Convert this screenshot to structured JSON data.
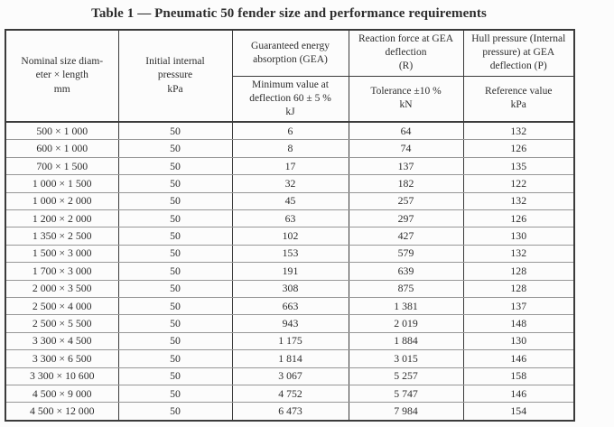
{
  "title": "Table 1 — Pneumatic 50 fender size and performance requirements",
  "table": {
    "columns": [
      {
        "top": "Nominal size diam-\neter × length\nmm",
        "sub": null
      },
      {
        "top": "Initial internal\npressure\nkPa",
        "sub": null
      },
      {
        "top": "Guaranteed energy\nabsorption (GEA)",
        "sub": "Minimum value at\ndeflection 60 ± 5 %\nkJ"
      },
      {
        "top": "Reaction force at GEA\ndeflection\n(R)",
        "sub": "Tolerance ±10 %\nkN"
      },
      {
        "top": "Hull pressure (Internal\npressure) at GEA\ndeflection (P)",
        "sub": "Reference value\nkPa"
      }
    ],
    "rows": [
      [
        "500 × 1 000",
        "50",
        "6",
        "64",
        "132"
      ],
      [
        "600 × 1 000",
        "50",
        "8",
        "74",
        "126"
      ],
      [
        "700 × 1 500",
        "50",
        "17",
        "137",
        "135"
      ],
      [
        "1 000 × 1 500",
        "50",
        "32",
        "182",
        "122"
      ],
      [
        "1 000 × 2 000",
        "50",
        "45",
        "257",
        "132"
      ],
      [
        "1 200 × 2 000",
        "50",
        "63",
        "297",
        "126"
      ],
      [
        "1 350 × 2 500",
        "50",
        "102",
        "427",
        "130"
      ],
      [
        "1 500 × 3 000",
        "50",
        "153",
        "579",
        "132"
      ],
      [
        "1 700 × 3 000",
        "50",
        "191",
        "639",
        "128"
      ],
      [
        "2 000 × 3 500",
        "50",
        "308",
        "875",
        "128"
      ],
      [
        "2 500 × 4 000",
        "50",
        "663",
        "1 381",
        "137"
      ],
      [
        "2 500 × 5 500",
        "50",
        "943",
        "2 019",
        "148"
      ],
      [
        "3 300 × 4 500",
        "50",
        "1 175",
        "1 884",
        "130"
      ],
      [
        "3 300 × 6 500",
        "50",
        "1 814",
        "3 015",
        "146"
      ],
      [
        "3 300 × 10 600",
        "50",
        "3 067",
        "5 257",
        "158"
      ],
      [
        "4 500 × 9 000",
        "50",
        "4 752",
        "5 747",
        "146"
      ],
      [
        "4 500 × 12 000",
        "50",
        "6 473",
        "7 984",
        "154"
      ]
    ]
  }
}
